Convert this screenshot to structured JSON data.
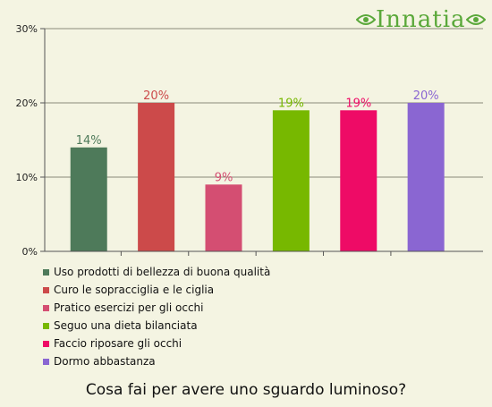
{
  "logo": {
    "text": "Innatia",
    "color": "#5aa83a"
  },
  "chart_data": {
    "type": "bar",
    "title": "Cosa fai per avere uno sguardo luminoso?",
    "categories": [
      "Uso prodotti di bellezza di buona qualità",
      "Curo le sopracciglia e le ciglia",
      "Pratico esercizi per gli occhi",
      "Seguo una dieta bilanciata",
      "Faccio riposare gli occhi",
      "Dormo abbastanza"
    ],
    "values": [
      14,
      20,
      9,
      19,
      19,
      20
    ],
    "value_labels": [
      "14%",
      "20%",
      "9%",
      "19%",
      "19%",
      "20%"
    ],
    "colors": [
      "#4e7a5a",
      "#cc4a4a",
      "#d44e72",
      "#77b800",
      "#ee0b66",
      "#8a66d2"
    ],
    "ylim": [
      0,
      30
    ],
    "yticks": [
      0,
      10,
      20,
      30
    ],
    "ytick_labels": [
      "0%",
      "10%",
      "20%",
      "30%"
    ],
    "grid": true,
    "legend": "bottom",
    "xlabel": "",
    "ylabel": ""
  }
}
